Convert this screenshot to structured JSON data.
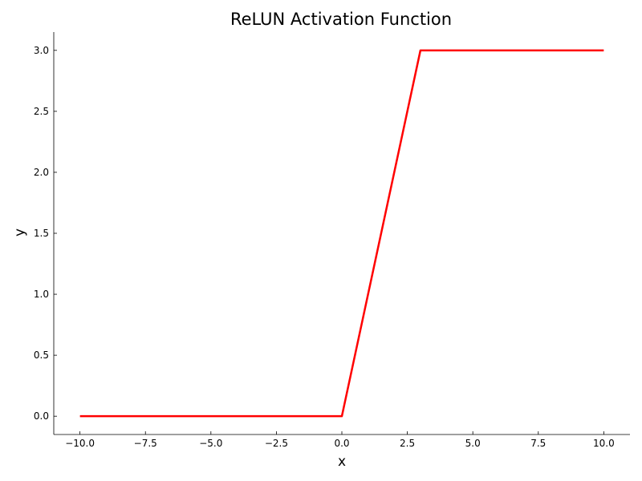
{
  "chart_data": {
    "type": "line",
    "title": "ReLUN Activation Function",
    "xlabel": "x",
    "ylabel": "y",
    "xlim": [
      -11,
      11
    ],
    "ylim": [
      -0.15,
      3.15
    ],
    "grid": false,
    "x_ticks": [
      -10.0,
      -7.5,
      -5.0,
      -2.5,
      0.0,
      2.5,
      5.0,
      7.5,
      10.0
    ],
    "x_tick_labels": [
      "−10.0",
      "−7.5",
      "−5.0",
      "−2.5",
      "0.0",
      "2.5",
      "5.0",
      "7.5",
      "10.0"
    ],
    "y_ticks": [
      0.0,
      0.5,
      1.0,
      1.5,
      2.0,
      2.5,
      3.0
    ],
    "y_tick_labels": [
      "0.0",
      "0.5",
      "1.0",
      "1.5",
      "2.0",
      "2.5",
      "3.0"
    ],
    "series": [
      {
        "color": "#ff0000",
        "x": [
          -10,
          0,
          3,
          10
        ],
        "y": [
          0,
          0,
          3,
          3
        ]
      }
    ]
  }
}
